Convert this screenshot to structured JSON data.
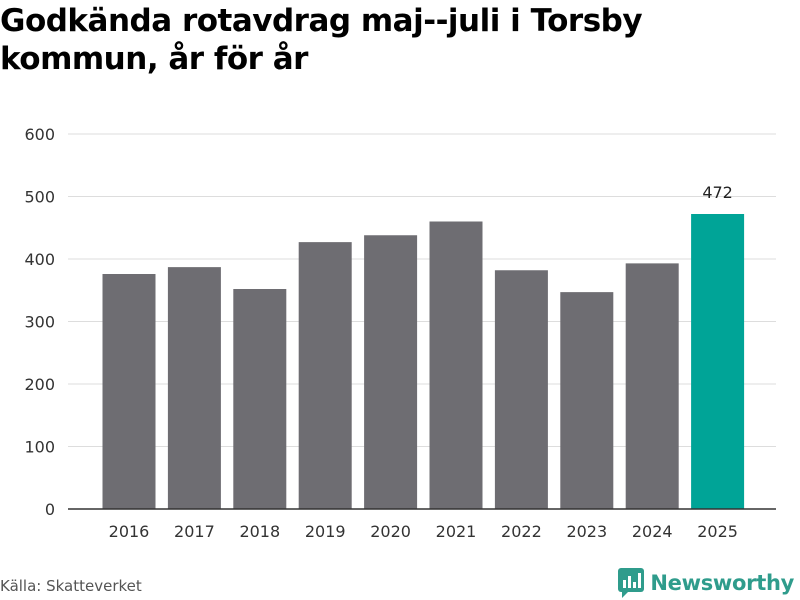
{
  "title": "Godkända rotavdrag maj--juli i Torsby kommun, år för år",
  "source": "Källa: Skatteverket",
  "brand": "Newsworthy",
  "colors": {
    "bar": "#6e6d72",
    "highlight": "#00a497",
    "grid": "#dddddd",
    "brand": "#2f9c8c"
  },
  "chart_data": {
    "type": "bar",
    "categories": [
      "2016",
      "2017",
      "2018",
      "2019",
      "2020",
      "2021",
      "2022",
      "2023",
      "2024",
      "2025"
    ],
    "values": [
      376,
      387,
      352,
      427,
      438,
      460,
      382,
      347,
      393,
      472
    ],
    "highlight_index": 9,
    "data_labels": [
      {
        "index": 9,
        "text": "472"
      }
    ],
    "yticks": [
      0,
      100,
      200,
      300,
      400,
      500,
      600
    ],
    "ylim": [
      0,
      600
    ],
    "grid": true,
    "legend": "none"
  }
}
